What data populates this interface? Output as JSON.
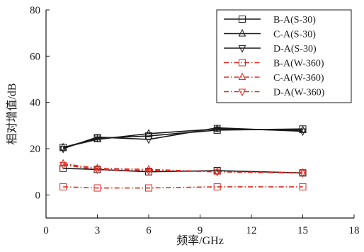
{
  "chart_data": {
    "type": "line",
    "title": "",
    "xlabel": "频率/GHz",
    "ylabel": "相对增值/dB",
    "xlim": [
      0,
      18
    ],
    "ylim": [
      -10,
      80
    ],
    "xticks": [
      0,
      3,
      6,
      9,
      12,
      15,
      18
    ],
    "yticks": [
      0,
      20,
      40,
      60,
      80
    ],
    "x": [
      1,
      3,
      6,
      10,
      15
    ],
    "grid": false,
    "legend_position": "top-right",
    "series": [
      {
        "name": "B-A(S-30)",
        "values": [
          20.5,
          24.5,
          25.5,
          28.0,
          28.5
        ],
        "color": "#1a1a1a",
        "dash": "solid",
        "marker": "square"
      },
      {
        "name": "C-A(S-30)",
        "values": [
          20.5,
          24.0,
          26.5,
          28.5,
          28.0
        ],
        "color": "#1a1a1a",
        "dash": "solid",
        "marker": "triangle-up"
      },
      {
        "name": "D-A(S-30)",
        "values": [
          20.0,
          25.0,
          24.0,
          29.0,
          27.5
        ],
        "color": "#1a1a1a",
        "dash": "solid",
        "marker": "triangle-down"
      },
      {
        "name": "B-A(W-360)",
        "values": [
          3.5,
          3.0,
          3.0,
          3.5,
          3.5
        ],
        "color": "#e0281e",
        "dash": "dashdot",
        "marker": "square"
      },
      {
        "name": "C-A(W-360)",
        "values": [
          13.5,
          11.5,
          11.0,
          10.0,
          9.5
        ],
        "color": "#e0281e",
        "dash": "dashdot",
        "marker": "triangle-up"
      },
      {
        "name": "D-A(W-360)",
        "values": [
          13.0,
          11.0,
          10.5,
          10.0,
          9.5
        ],
        "color": "#e0281e",
        "dash": "dashdot",
        "marker": "triangle-down"
      }
    ],
    "extra_series": [
      {
        "values": [
          11.5,
          11.0,
          10.0,
          10.5,
          9.5
        ],
        "color": "#1a1a1a",
        "dash": "solid",
        "marker": "square"
      }
    ]
  }
}
